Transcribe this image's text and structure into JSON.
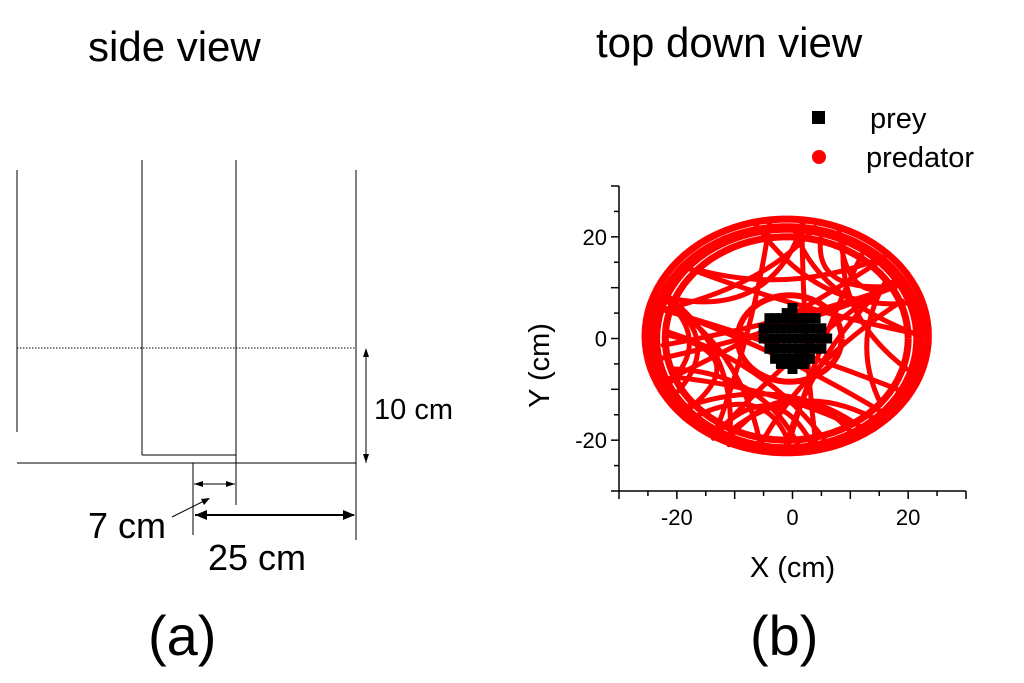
{
  "side_panel": {
    "title": "side view",
    "panel_label": "(a)",
    "dimensions": {
      "water_depth": "10 cm",
      "inner_radius": "7 cm",
      "outer_radius": "25 cm"
    }
  },
  "top_panel": {
    "title": "top down view",
    "panel_label": "(b)"
  },
  "chart_data": {
    "type": "scatter",
    "xlabel": "X (cm)",
    "ylabel": "Y (cm)",
    "xlim": [
      -30,
      30
    ],
    "ylim": [
      -30,
      30
    ],
    "xticks": [
      -20,
      0,
      20
    ],
    "yticks": [
      -20,
      0,
      20
    ],
    "grid": false,
    "legend_position": "top-right",
    "series": [
      {
        "name": "prey",
        "marker": "square",
        "color": "#000000",
        "description_values": "clustered around center",
        "x": [
          -5,
          -4,
          -3,
          -2,
          -1,
          0,
          1,
          2,
          3,
          4,
          5,
          6,
          -5,
          -4,
          -3,
          -2,
          -1,
          0,
          1,
          2,
          3,
          4,
          5,
          -4,
          -3,
          -2,
          -1,
          0,
          1,
          2,
          3,
          4,
          -4,
          -3,
          -2,
          -1,
          0,
          1,
          2,
          3,
          4,
          5,
          -3,
          -2,
          -1,
          0,
          1,
          2,
          3,
          -2,
          -1,
          0,
          1,
          2,
          0,
          0,
          -1,
          1
        ],
        "y": [
          0,
          0,
          0,
          0,
          0,
          0,
          0,
          0,
          0,
          0,
          0,
          0,
          2,
          2,
          2,
          2,
          2,
          2,
          2,
          2,
          2,
          2,
          2,
          4,
          4,
          4,
          4,
          4,
          4,
          4,
          4,
          4,
          -2,
          -2,
          -2,
          -2,
          -2,
          -2,
          -2,
          -2,
          -2,
          -2,
          -4,
          -4,
          -4,
          -4,
          -4,
          -4,
          -4,
          -5,
          -5,
          -5,
          -5,
          -5,
          6,
          -6,
          5,
          -5
        ]
      },
      {
        "name": "predator",
        "marker": "circle",
        "color": "#ff0000",
        "x": [],
        "y": []
      }
    ]
  }
}
